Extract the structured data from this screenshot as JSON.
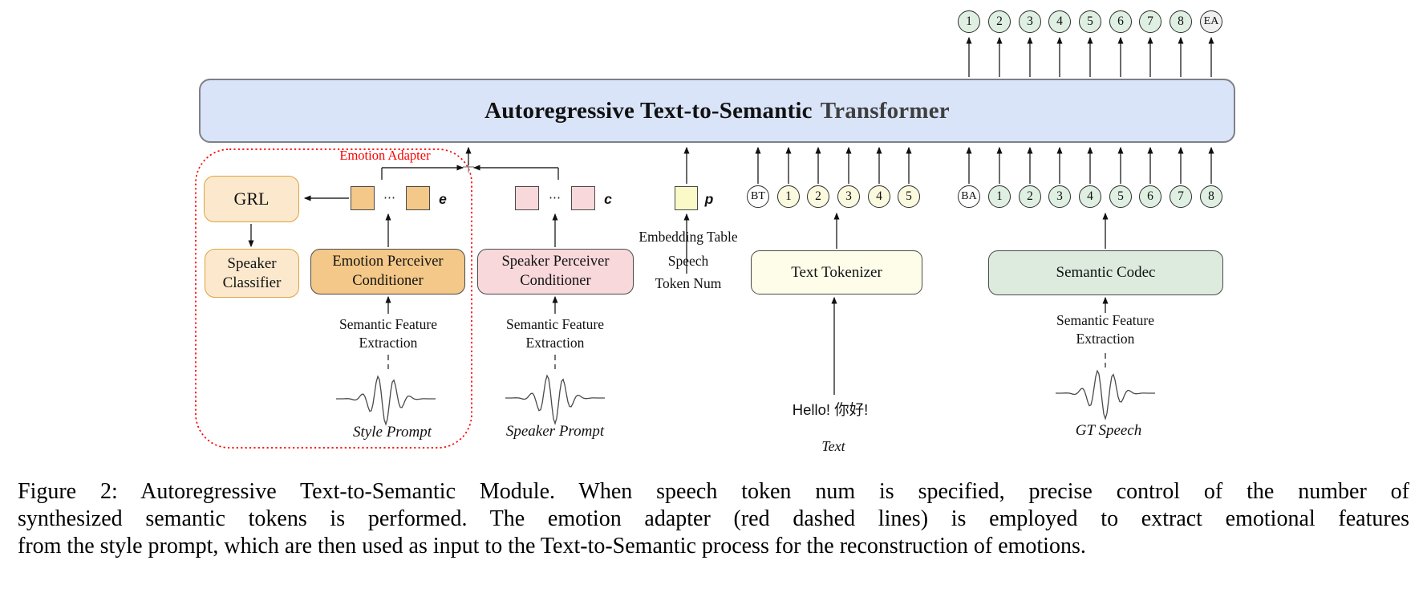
{
  "transformer": {
    "title_main": "Autoregressive Text-to-Semantic",
    "title_accent": "Transformer"
  },
  "tokens": {
    "output": [
      "1",
      "2",
      "3",
      "4",
      "5",
      "6",
      "7",
      "8",
      "EA"
    ],
    "text_row": [
      "BT",
      "1",
      "2",
      "3",
      "4",
      "5"
    ],
    "semantic_row": [
      "BA",
      "1",
      "2",
      "3",
      "4",
      "5",
      "6",
      "7",
      "8"
    ]
  },
  "emotion_adapter": {
    "label": "Emotion Adapter",
    "grl": "GRL",
    "speaker_classifier": "Speaker\nClassifier",
    "emotion_perceiver": "Emotion Perceiver\nConditioner",
    "ellipsis": "⋯",
    "embedding_var": "e"
  },
  "speaker_branch": {
    "speaker_perceiver": "Speaker Perceiver\nConditioner",
    "ellipsis": "⋯",
    "embedding_var": "c"
  },
  "prosody_branch": {
    "embedding_var": "p",
    "embedding_table": "Embedding Table",
    "speech_token_num": "Speech\nToken Num"
  },
  "text_branch": {
    "text_tokenizer": "Text Tokenizer",
    "input_text": "Hello! 你好!",
    "input_label": "Text"
  },
  "speech_branch": {
    "semantic_codec": "Semantic Codec",
    "input_label": "GT Speech"
  },
  "shared": {
    "semantic_feature_extraction": "Semantic Feature\nExtraction",
    "style_prompt": "Style Prompt",
    "speaker_prompt": "Speaker Prompt"
  },
  "caption": {
    "line1": "Figure 2: Autoregressive Text-to-Semantic Module. When speech token num is specified, precise control of the number of",
    "line2": "synthesized semantic tokens is performed. The emotion adapter (red dashed lines) is employed to extract emotional features",
    "line3": "from the style prompt, which are then used as input to the Text-to-Semantic process for the reconstruction of emotions."
  },
  "colors": {
    "transformer_fill": "#D9E4F8",
    "transformer_border": "#7F7F88",
    "title_accent_gray": "#3F3F3F",
    "grl_fill": "#FCE9CD",
    "grl_border": "#DCA43F",
    "emotion_fill": "#F4C888",
    "speaker_fill": "#F8D8DB",
    "prosody_square_fill": "#FAFAC9",
    "tokenizer_fill": "#FDFDE9",
    "codec_fill": "#DCEBDE",
    "green_token": "#DFF0E3",
    "yellow_token": "#FBFADF",
    "white_token": "#FFFFFF",
    "ea_token": "#F0F0F0",
    "adapter_outline_red": "#FF0000"
  }
}
